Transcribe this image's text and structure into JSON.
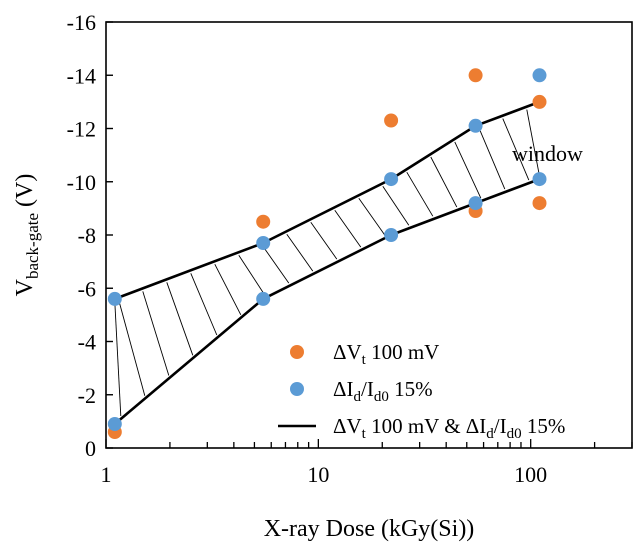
{
  "chart_data": {
    "type": "scatter",
    "xlabel": "X-ray Dose (kGy(Si))",
    "ylabel_main": "V",
    "ylabel_sub": "back-gate",
    "ylabel_unit": "(V)",
    "xscale": "log",
    "xlim": [
      1,
      300
    ],
    "ylim": [
      0,
      -16
    ],
    "y_inverted": true,
    "grid": false,
    "x_ticks": [
      {
        "value": 1,
        "label": "1"
      },
      {
        "value": 10,
        "label": "10"
      },
      {
        "value": 100,
        "label": "100"
      }
    ],
    "y_ticks": [
      {
        "value": 0,
        "label": "0"
      },
      {
        "value": -2,
        "label": "-2"
      },
      {
        "value": -4,
        "label": "-4"
      },
      {
        "value": -6,
        "label": "-6"
      },
      {
        "value": -8,
        "label": "-8"
      },
      {
        "value": -10,
        "label": "-10"
      },
      {
        "value": -12,
        "label": "-12"
      },
      {
        "value": -14,
        "label": "-14"
      },
      {
        "value": -16,
        "label": "-16"
      }
    ],
    "series": [
      {
        "legend": {
          "prefix": "ΔV",
          "sub": "t",
          "suffix": " 100 mV"
        },
        "marker": "circle",
        "color": "#ED7D31",
        "points": [
          [
            1.1,
            -0.6
          ],
          [
            5.5,
            -8.5
          ],
          [
            22,
            -12.3
          ],
          [
            55,
            -8.9
          ],
          [
            55,
            -14.0
          ],
          [
            110,
            -9.2
          ],
          [
            110,
            -13.0
          ]
        ]
      },
      {
        "legend": {
          "prefix": "ΔI",
          "sub": "d",
          "mid": "/I",
          "sub2": "d0",
          "suffix": " 15%"
        },
        "marker": "circle",
        "color": "#5B9BD5",
        "points": [
          [
            1.1,
            -0.9
          ],
          [
            1.1,
            -5.6
          ],
          [
            5.5,
            -5.6
          ],
          [
            5.5,
            -7.7
          ],
          [
            22,
            -8.0
          ],
          [
            22,
            -10.1
          ],
          [
            55,
            -9.2
          ],
          [
            55,
            -12.1
          ],
          [
            110,
            -10.1
          ],
          [
            110,
            -14.0
          ]
        ]
      },
      {
        "legend": {
          "prefix": "ΔV",
          "sub": "t",
          "mid": " 100 mV & ΔI",
          "sub2": "d",
          "mid2": "/I",
          "sub3": "d0",
          "suffix": " 15%"
        },
        "marker": "line",
        "color": "#000000",
        "upper": [
          [
            1.1,
            -5.6
          ],
          [
            5.5,
            -7.7
          ],
          [
            22,
            -10.1
          ],
          [
            55,
            -12.1
          ],
          [
            110,
            -13.0
          ]
        ],
        "lower": [
          [
            1.1,
            -0.9
          ],
          [
            5.5,
            -5.6
          ],
          [
            22,
            -8.0
          ],
          [
            55,
            -9.2
          ],
          [
            110,
            -10.1
          ]
        ]
      }
    ],
    "annotation": "window",
    "legend_position": "bottom-right"
  }
}
